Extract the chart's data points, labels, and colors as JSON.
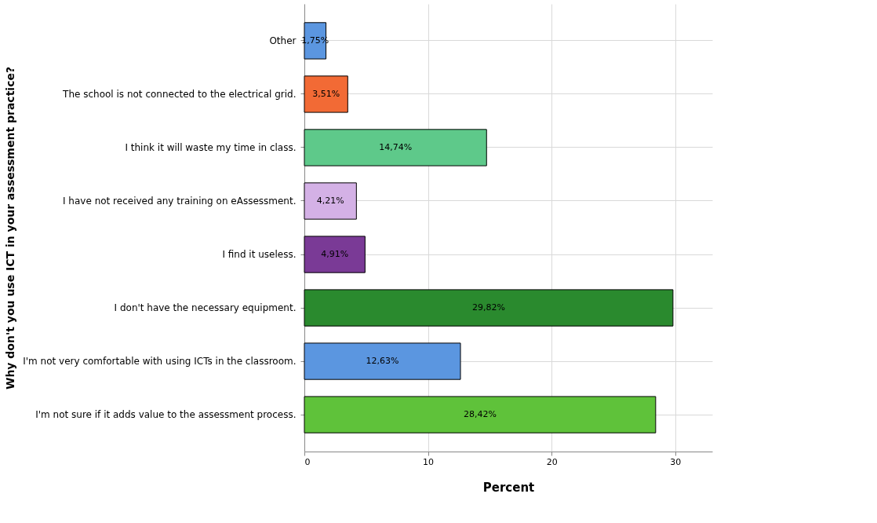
{
  "chart_data": {
    "type": "bar",
    "orientation": "horizontal",
    "xlabel": "Percent",
    "ylabel": "Why don't you use ICT in your assessment practice?",
    "categories": [
      "Other",
      "The school is not connected to the electrical grid.",
      "I think it will waste my time in class.",
      "I have not received any training on eAssessment.",
      "I find it useless.",
      "I don't have the necessary equipment.",
      "I'm not very comfortable with using ICTs in the classroom.",
      "I'm not sure if it adds value to the assessment process."
    ],
    "values": [
      1.75,
      3.51,
      14.74,
      4.21,
      4.91,
      29.82,
      12.63,
      28.42
    ],
    "value_labels": [
      "1,75%",
      "3,51%",
      "14,74%",
      "4,21%",
      "4,91%",
      "29,82%",
      "12,63%",
      "28,42%"
    ],
    "colors": [
      "#5b96e0",
      "#f26a35",
      "#5ec98a",
      "#d4b1e6",
      "#7a3a96",
      "#2a8a2e",
      "#5b96e0",
      "#5fc23a"
    ],
    "xlim": [
      0,
      33
    ],
    "xticks": [
      0,
      10,
      20,
      30
    ],
    "grid": true
  }
}
